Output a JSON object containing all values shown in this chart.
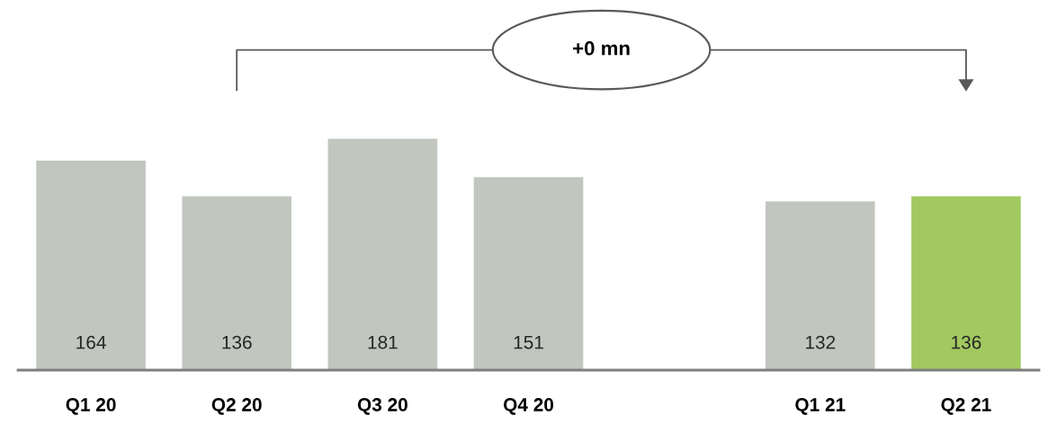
{
  "chart_data": {
    "type": "bar",
    "categories": [
      "Q1 20",
      "Q2 20",
      "Q3 20",
      "Q4 20",
      null,
      "Q1 21",
      "Q2 21"
    ],
    "values": [
      164,
      136,
      181,
      151,
      null,
      132,
      136
    ],
    "colors": [
      "#c1c6bf",
      "#c1c6bf",
      "#c1c6bf",
      "#c1c6bf",
      "#c1c6bf",
      "#c1c6bf",
      "#a2c95f"
    ],
    "data_labels": true,
    "annotations": [
      "+0 mn"
    ]
  }
}
